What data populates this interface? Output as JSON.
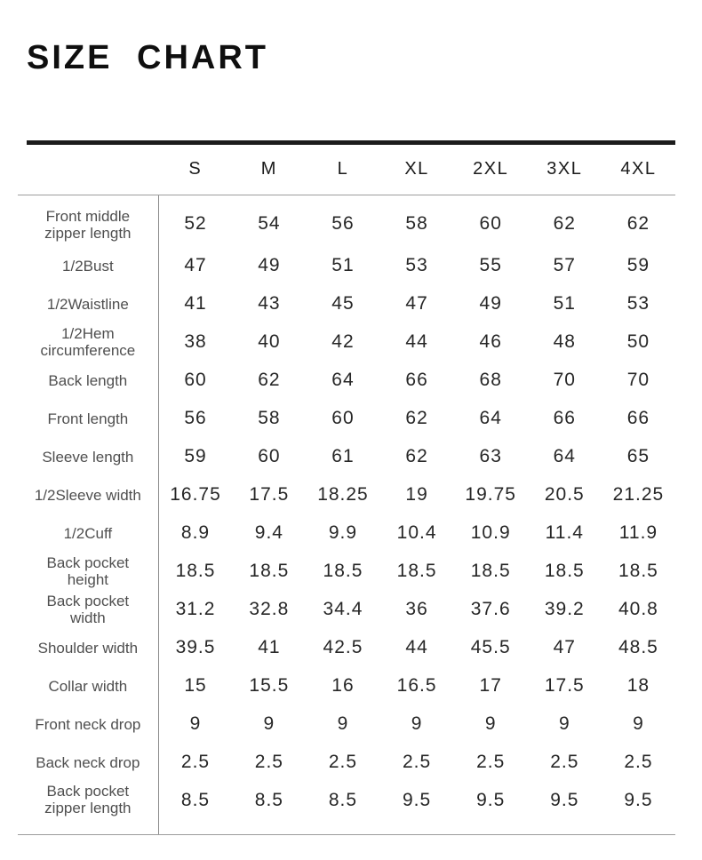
{
  "title": "SIZE CHART",
  "colors": {
    "title_text": "#0f0f0f",
    "header_text": "#1b1b1b",
    "row_label_text": "#4f4f4f",
    "value_text": "#272727",
    "thick_rule": "#1c1c1c",
    "thin_rule": "#9c9c9c",
    "vertical_divider": "#8a8a8a",
    "background": "#ffffff"
  },
  "chart_data": {
    "type": "table",
    "title": "SIZE CHART",
    "size_headers": [
      "S",
      "M",
      "L",
      "XL",
      "2XL",
      "3XL",
      "4XL"
    ],
    "rows": [
      {
        "label": "Front middle zipper length",
        "values": [
          52,
          54,
          56,
          58,
          60,
          62,
          62
        ]
      },
      {
        "label": "1/2Bust",
        "values": [
          47,
          49,
          51,
          53,
          55,
          57,
          59
        ]
      },
      {
        "label": "1/2Waistline",
        "values": [
          41,
          43,
          45,
          47,
          49,
          51,
          53
        ]
      },
      {
        "label": "1/2Hem circumference",
        "values": [
          38,
          40,
          42,
          44,
          46,
          48,
          50
        ]
      },
      {
        "label": "Back length",
        "values": [
          60,
          62,
          64,
          66,
          68,
          70,
          70
        ]
      },
      {
        "label": "Front length",
        "values": [
          56,
          58,
          60,
          62,
          64,
          66,
          66
        ]
      },
      {
        "label": "Sleeve length",
        "values": [
          59,
          60,
          61,
          62,
          63,
          64,
          65
        ]
      },
      {
        "label": "1/2Sleeve width",
        "values": [
          16.75,
          17.5,
          18.25,
          19,
          19.75,
          20.5,
          21.25
        ]
      },
      {
        "label": "1/2Cuff",
        "values": [
          8.9,
          9.4,
          9.9,
          10.4,
          10.9,
          11.4,
          11.9
        ]
      },
      {
        "label": "Back pocket height",
        "values": [
          18.5,
          18.5,
          18.5,
          18.5,
          18.5,
          18.5,
          18.5
        ]
      },
      {
        "label": "Back pocket width",
        "values": [
          31.2,
          32.8,
          34.4,
          36,
          37.6,
          39.2,
          40.8
        ]
      },
      {
        "label": "Shoulder width",
        "values": [
          39.5,
          41,
          42.5,
          44,
          45.5,
          47,
          48.5
        ]
      },
      {
        "label": "Collar width",
        "values": [
          15,
          15.5,
          16,
          16.5,
          17,
          17.5,
          18
        ]
      },
      {
        "label": "Front neck drop",
        "values": [
          9,
          9,
          9,
          9,
          9,
          9,
          9
        ]
      },
      {
        "label": "Back neck drop",
        "values": [
          2.5,
          2.5,
          2.5,
          2.5,
          2.5,
          2.5,
          2.5
        ]
      },
      {
        "label": "Back pocket zipper length",
        "values": [
          8.5,
          8.5,
          8.5,
          9.5,
          9.5,
          9.5,
          9.5
        ]
      }
    ]
  }
}
